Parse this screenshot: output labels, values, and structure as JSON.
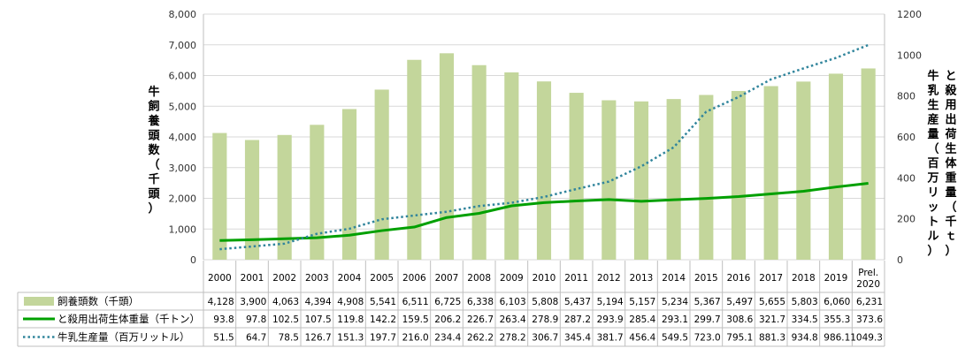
{
  "chart_data": {
    "type": "bar",
    "categories": [
      "2000",
      "2001",
      "2002",
      "2003",
      "2004",
      "2005",
      "2006",
      "2007",
      "2008",
      "2009",
      "2010",
      "2011",
      "2012",
      "2013",
      "2014",
      "2015",
      "2016",
      "2017",
      "2018",
      "2019",
      "Prel. 2020"
    ],
    "category_display": [
      [
        "2000"
      ],
      [
        "2001"
      ],
      [
        "2002"
      ],
      [
        "2003"
      ],
      [
        "2004"
      ],
      [
        "2005"
      ],
      [
        "2006"
      ],
      [
        "2007"
      ],
      [
        "2008"
      ],
      [
        "2009"
      ],
      [
        "2010"
      ],
      [
        "2011"
      ],
      [
        "2012"
      ],
      [
        "2013"
      ],
      [
        "2014"
      ],
      [
        "2015"
      ],
      [
        "2016"
      ],
      [
        "2017"
      ],
      [
        "2018"
      ],
      [
        "2019"
      ],
      [
        "Prel.",
        "2020"
      ]
    ],
    "series": [
      {
        "name": "飼養頭数（千頭）",
        "chart": "bar",
        "axis": "left",
        "color": "#c3d69b",
        "values": [
          4128,
          3900,
          4063,
          4394,
          4908,
          5541,
          6511,
          6725,
          6338,
          6103,
          5808,
          5437,
          5194,
          5157,
          5234,
          5367,
          5497,
          5655,
          5803,
          6060,
          6231
        ],
        "labels": [
          "4,128",
          "3,900",
          "4,063",
          "4,394",
          "4,908",
          "5,541",
          "6,511",
          "6,725",
          "6,338",
          "6,103",
          "5,808",
          "5,437",
          "5,194",
          "5,157",
          "5,234",
          "5,367",
          "5,497",
          "5,655",
          "5,803",
          "6,060",
          "6,231"
        ]
      },
      {
        "name": "と殺用出荷生体重量（千トン）",
        "chart": "line",
        "axis": "right",
        "color": "#00a000",
        "values": [
          93.8,
          97.8,
          102.5,
          107.5,
          119.8,
          142.2,
          159.5,
          206.2,
          226.7,
          263.4,
          278.9,
          287.2,
          293.9,
          285.4,
          293.1,
          299.7,
          308.6,
          321.7,
          334.5,
          355.3,
          373.6
        ],
        "labels": [
          "93.8",
          "97.8",
          "102.5",
          "107.5",
          "119.8",
          "142.2",
          "159.5",
          "206.2",
          "226.7",
          "263.4",
          "278.9",
          "287.2",
          "293.9",
          "285.4",
          "293.1",
          "299.7",
          "308.6",
          "321.7",
          "334.5",
          "355.3",
          "373.6"
        ]
      },
      {
        "name": "牛乳生産量（百万リットル）",
        "chart": "line-dotted",
        "axis": "right",
        "color": "#31859c",
        "values": [
          51.5,
          64.7,
          78.5,
          126.7,
          151.3,
          197.7,
          216.0,
          234.4,
          262.2,
          278.2,
          306.7,
          345.4,
          381.7,
          456.4,
          549.5,
          723.0,
          795.1,
          881.3,
          934.8,
          986.1,
          1049.3
        ],
        "labels": [
          "51.5",
          "64.7",
          "78.5",
          "126.7",
          "151.3",
          "197.7",
          "216.0",
          "234.4",
          "262.2",
          "278.2",
          "306.7",
          "345.4",
          "381.7",
          "456.4",
          "549.5",
          "723.0",
          "795.1",
          "881.3",
          "934.8",
          "986.1",
          "1049.3"
        ]
      }
    ],
    "y_left": {
      "label": "牛飼養頭数（千頭）",
      "ylim": [
        0,
        8000
      ],
      "ticks": [
        "0",
        "1,000",
        "2,000",
        "3,000",
        "4,000",
        "5,000",
        "6,000",
        "7,000",
        "8,000"
      ]
    },
    "y_right": {
      "label_col1": "と殺用出荷生体重量（千ｔ）",
      "label_col2": "牛乳生産量（百万リットル）",
      "ylim": [
        0,
        1200
      ],
      "ticks": [
        "0",
        "200",
        "400",
        "600",
        "800",
        "1000",
        "1200"
      ]
    },
    "grid": true,
    "legend": "data table below chart"
  }
}
